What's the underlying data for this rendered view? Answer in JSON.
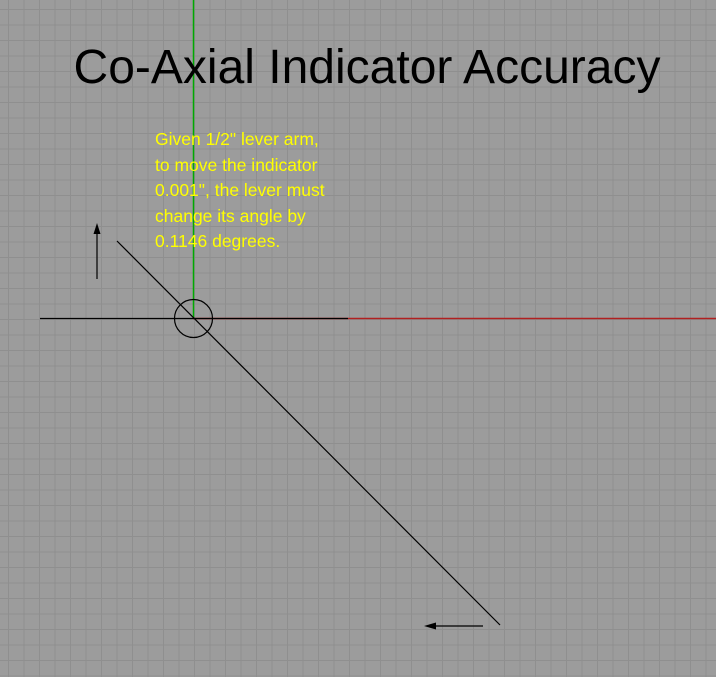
{
  "title": "Co-Axial Indicator Accuracy",
  "note": {
    "lines": [
      "Given 1/2\" lever arm,",
      "to move the indicator",
      "0.001\", the lever must",
      "change its angle by",
      "0.1146 degrees."
    ]
  },
  "colors": {
    "background": "#9c9c9c",
    "grid": "#8f8f8f",
    "y_axis": "#00aa00",
    "x_axis": "#b02020",
    "geometry": "#000000",
    "title": "#000000",
    "note": "#ffff00"
  }
}
